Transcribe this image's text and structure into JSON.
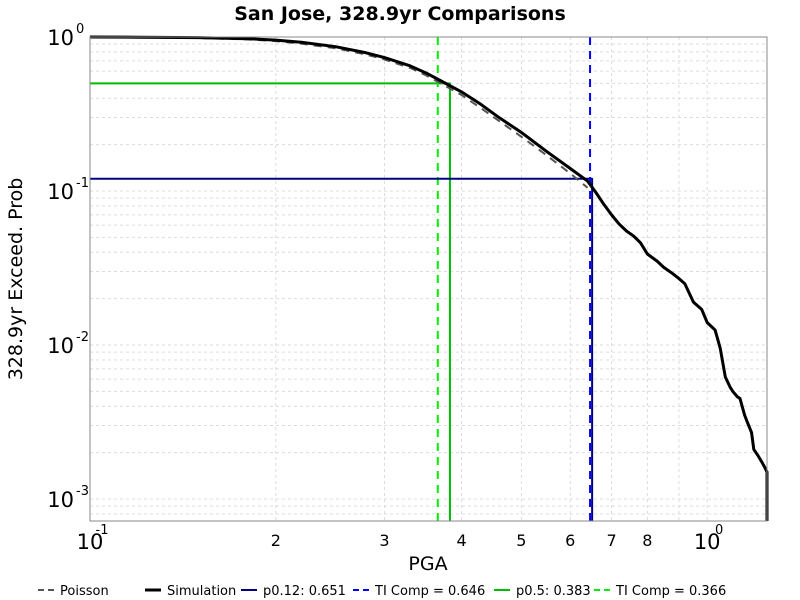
{
  "chart_data": {
    "type": "line",
    "title": "San Jose, 328.9yr Comparisons",
    "xlabel": "PGA",
    "ylabel": "328.9yr Exceed. Prob",
    "x_scale": "log",
    "y_scale": "log",
    "xlim": [
      0.1,
      1.25
    ],
    "ylim": [
      0.00072,
      1.0
    ],
    "grid": true,
    "legend_position": "bottom",
    "x_ticks": [
      {
        "value": 0.1,
        "base": "10",
        "exp": "-1",
        "major": true
      },
      {
        "value": 0.2,
        "label": "2"
      },
      {
        "value": 0.3,
        "label": "3"
      },
      {
        "value": 0.4,
        "label": "4"
      },
      {
        "value": 0.5,
        "label": "5"
      },
      {
        "value": 0.6,
        "label": "6"
      },
      {
        "value": 0.7,
        "label": "7"
      },
      {
        "value": 0.8,
        "label": "8"
      },
      {
        "value": 1.0,
        "base": "10",
        "exp": "0",
        "major": true
      }
    ],
    "y_ticks": [
      {
        "value": 1.0,
        "base": "10",
        "exp": "0"
      },
      {
        "value": 0.1,
        "base": "10",
        "exp": "-1"
      },
      {
        "value": 0.01,
        "base": "10",
        "exp": "-2"
      },
      {
        "value": 0.001,
        "base": "10",
        "exp": "-3"
      }
    ],
    "series": [
      {
        "name": "Poisson",
        "color": "#555555",
        "style": "dashed",
        "x": [
          0.1,
          0.12,
          0.15,
          0.18,
          0.2,
          0.22,
          0.25,
          0.28,
          0.3,
          0.33,
          0.35,
          0.37,
          0.4,
          0.43,
          0.46,
          0.5,
          0.55,
          0.6,
          0.64
        ],
        "y": [
          1.0,
          0.995,
          0.985,
          0.965,
          0.94,
          0.905,
          0.845,
          0.77,
          0.715,
          0.63,
          0.565,
          0.5,
          0.42,
          0.345,
          0.285,
          0.225,
          0.17,
          0.13,
          0.105
        ]
      },
      {
        "name": "Simulation",
        "color": "#000000",
        "style": "solid",
        "x": [
          0.1,
          0.12,
          0.15,
          0.18,
          0.2,
          0.22,
          0.25,
          0.28,
          0.3,
          0.33,
          0.35,
          0.37,
          0.4,
          0.43,
          0.46,
          0.5,
          0.55,
          0.6,
          0.64,
          0.66,
          0.68,
          0.7,
          0.72,
          0.74,
          0.76,
          0.78,
          0.8,
          0.83,
          0.85,
          0.88,
          0.9,
          0.92,
          0.95,
          0.98,
          1.0,
          1.03,
          1.05,
          1.07,
          1.09,
          1.1,
          1.12,
          1.13,
          1.15,
          1.16,
          1.18,
          1.19,
          1.21,
          1.23,
          1.24,
          1.25,
          1.25
        ],
        "y": [
          1.0,
          0.997,
          0.99,
          0.975,
          0.955,
          0.925,
          0.865,
          0.79,
          0.735,
          0.65,
          0.585,
          0.52,
          0.44,
          0.365,
          0.3,
          0.24,
          0.18,
          0.14,
          0.116,
          0.098,
          0.082,
          0.07,
          0.061,
          0.055,
          0.051,
          0.046,
          0.039,
          0.035,
          0.032,
          0.029,
          0.027,
          0.025,
          0.019,
          0.017,
          0.014,
          0.0125,
          0.0095,
          0.0062,
          0.0053,
          0.005,
          0.0046,
          0.0045,
          0.0035,
          0.0032,
          0.0027,
          0.0021,
          0.0019,
          0.0017,
          0.0016,
          0.0015,
          0.00072
        ]
      },
      {
        "name": "p0.12: 0.651",
        "color": "#000080",
        "style": "solid",
        "x": [
          0.1,
          0.651,
          0.651
        ],
        "y": [
          0.12,
          0.12,
          0.00072
        ]
      },
      {
        "name": "TI Comp = 0.646",
        "color": "#0000ff",
        "style": "dashed",
        "x": [
          0.646,
          0.646
        ],
        "y": [
          1.0,
          0.00072
        ]
      },
      {
        "name": "p0.5: 0.383",
        "color": "#00bb00",
        "style": "solid",
        "x": [
          0.1,
          0.383,
          0.383
        ],
        "y": [
          0.5,
          0.5,
          0.00072
        ]
      },
      {
        "name": "TI Comp = 0.366",
        "color": "#00ee00",
        "style": "dashed",
        "x": [
          0.366,
          0.366
        ],
        "y": [
          1.0,
          0.00072
        ]
      }
    ]
  }
}
